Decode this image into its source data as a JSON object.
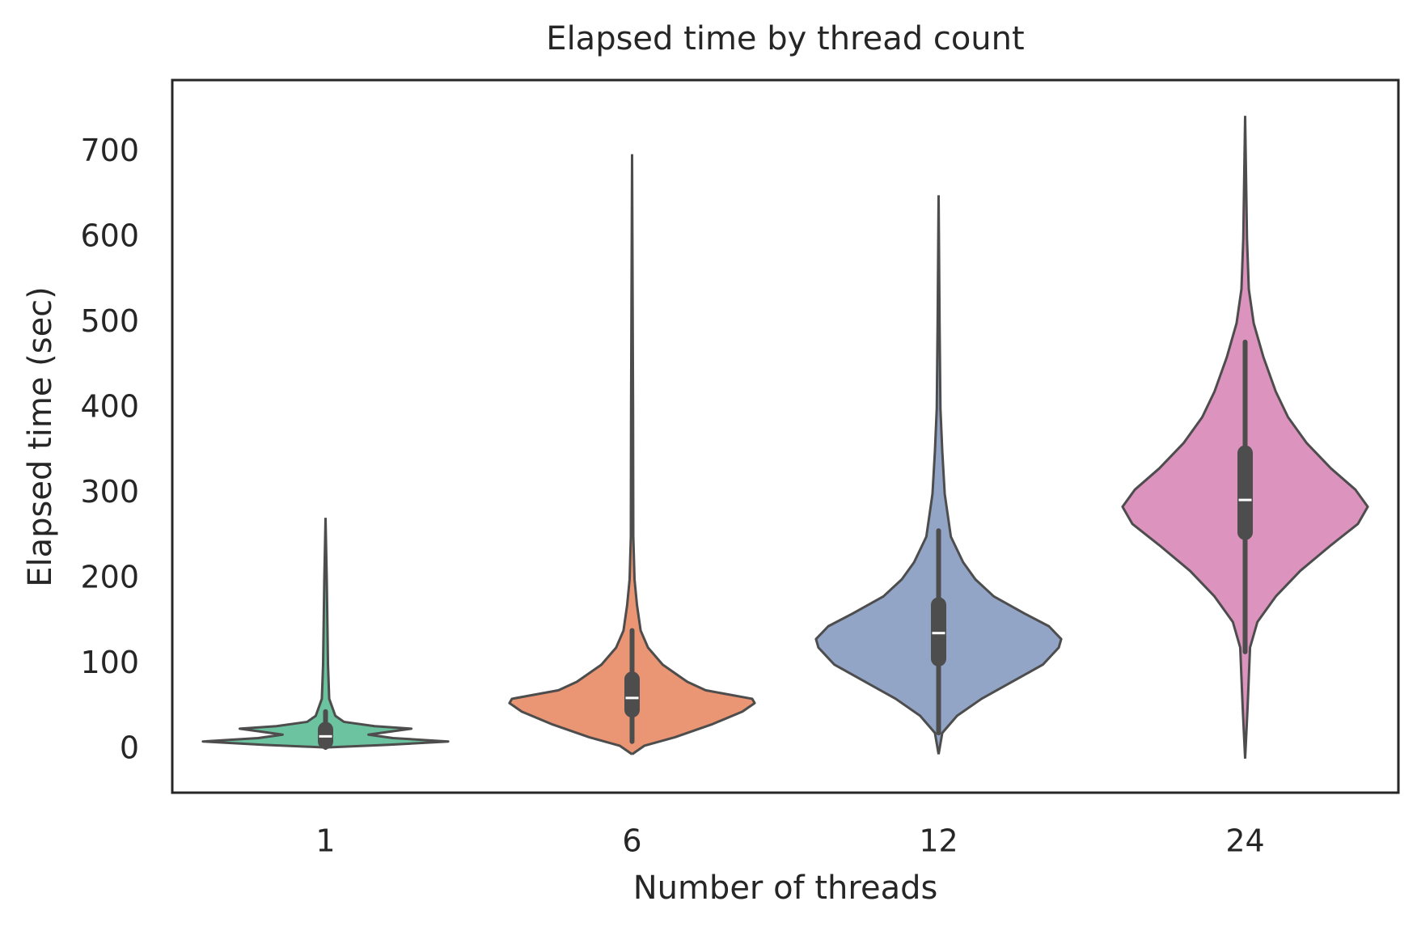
{
  "chart_data": {
    "type": "violin",
    "title": "Elapsed time by thread count",
    "x_label": "Number of threads",
    "y_label": "Elapsed time (sec)",
    "categories": [
      "1",
      "6",
      "12",
      "24"
    ],
    "ylim": [
      -50,
      785
    ],
    "yticks": [
      0,
      100,
      200,
      300,
      400,
      500,
      600,
      700
    ],
    "grid": false,
    "series": [
      {
        "name": "1",
        "color": "#6cc39f",
        "whisker_low": 3,
        "q1": 10,
        "median": 16,
        "q3": 24,
        "whisker_high": 45,
        "density": {
          "y": [
            3,
            6,
            10,
            14,
            18,
            22,
            25,
            28,
            33,
            40,
            60,
            100,
            150,
            200,
            272
          ],
          "width": [
            0,
            0.5,
            1.0,
            0.55,
            0.35,
            0.55,
            0.7,
            0.4,
            0.15,
            0.08,
            0.03,
            0.02,
            0.015,
            0.01,
            0
          ]
        }
      },
      {
        "name": "6",
        "color": "#ea9674",
        "whisker_low": 10,
        "q1": 47,
        "median": 61,
        "q3": 83,
        "whisker_high": 140,
        "density": {
          "y": [
            -5,
            5,
            15,
            30,
            45,
            55,
            60,
            70,
            80,
            100,
            120,
            140,
            170,
            200,
            250,
            400,
            698
          ],
          "width": [
            0,
            0.1,
            0.35,
            0.65,
            0.9,
            1.0,
            0.98,
            0.6,
            0.45,
            0.25,
            0.13,
            0.07,
            0.04,
            0.02,
            0.01,
            0.008,
            0
          ]
        }
      },
      {
        "name": "12",
        "color": "#93a5c6",
        "whisker_low": 20,
        "q1": 107,
        "median": 137,
        "q3": 170,
        "whisker_high": 257,
        "density": {
          "y": [
            -5,
            20,
            40,
            60,
            80,
            100,
            120,
            130,
            145,
            160,
            180,
            200,
            220,
            250,
            300,
            350,
            400,
            500,
            650
          ],
          "width": [
            0,
            0.03,
            0.15,
            0.35,
            0.6,
            0.85,
            0.98,
            1.0,
            0.9,
            0.7,
            0.45,
            0.3,
            0.2,
            0.1,
            0.05,
            0.03,
            0.015,
            0.008,
            0
          ]
        }
      },
      {
        "name": "24",
        "color": "#dc93be",
        "whisker_low": 115,
        "q1": 255,
        "median": 293,
        "q3": 348,
        "whisker_high": 478,
        "density": {
          "y": [
            -10,
            50,
            120,
            150,
            180,
            210,
            240,
            265,
            285,
            305,
            330,
            360,
            390,
            420,
            460,
            500,
            540,
            600,
            743
          ],
          "width": [
            0,
            0.02,
            0.04,
            0.1,
            0.25,
            0.45,
            0.7,
            0.92,
            1.0,
            0.9,
            0.7,
            0.5,
            0.35,
            0.25,
            0.15,
            0.07,
            0.03,
            0.015,
            0
          ]
        }
      }
    ]
  }
}
